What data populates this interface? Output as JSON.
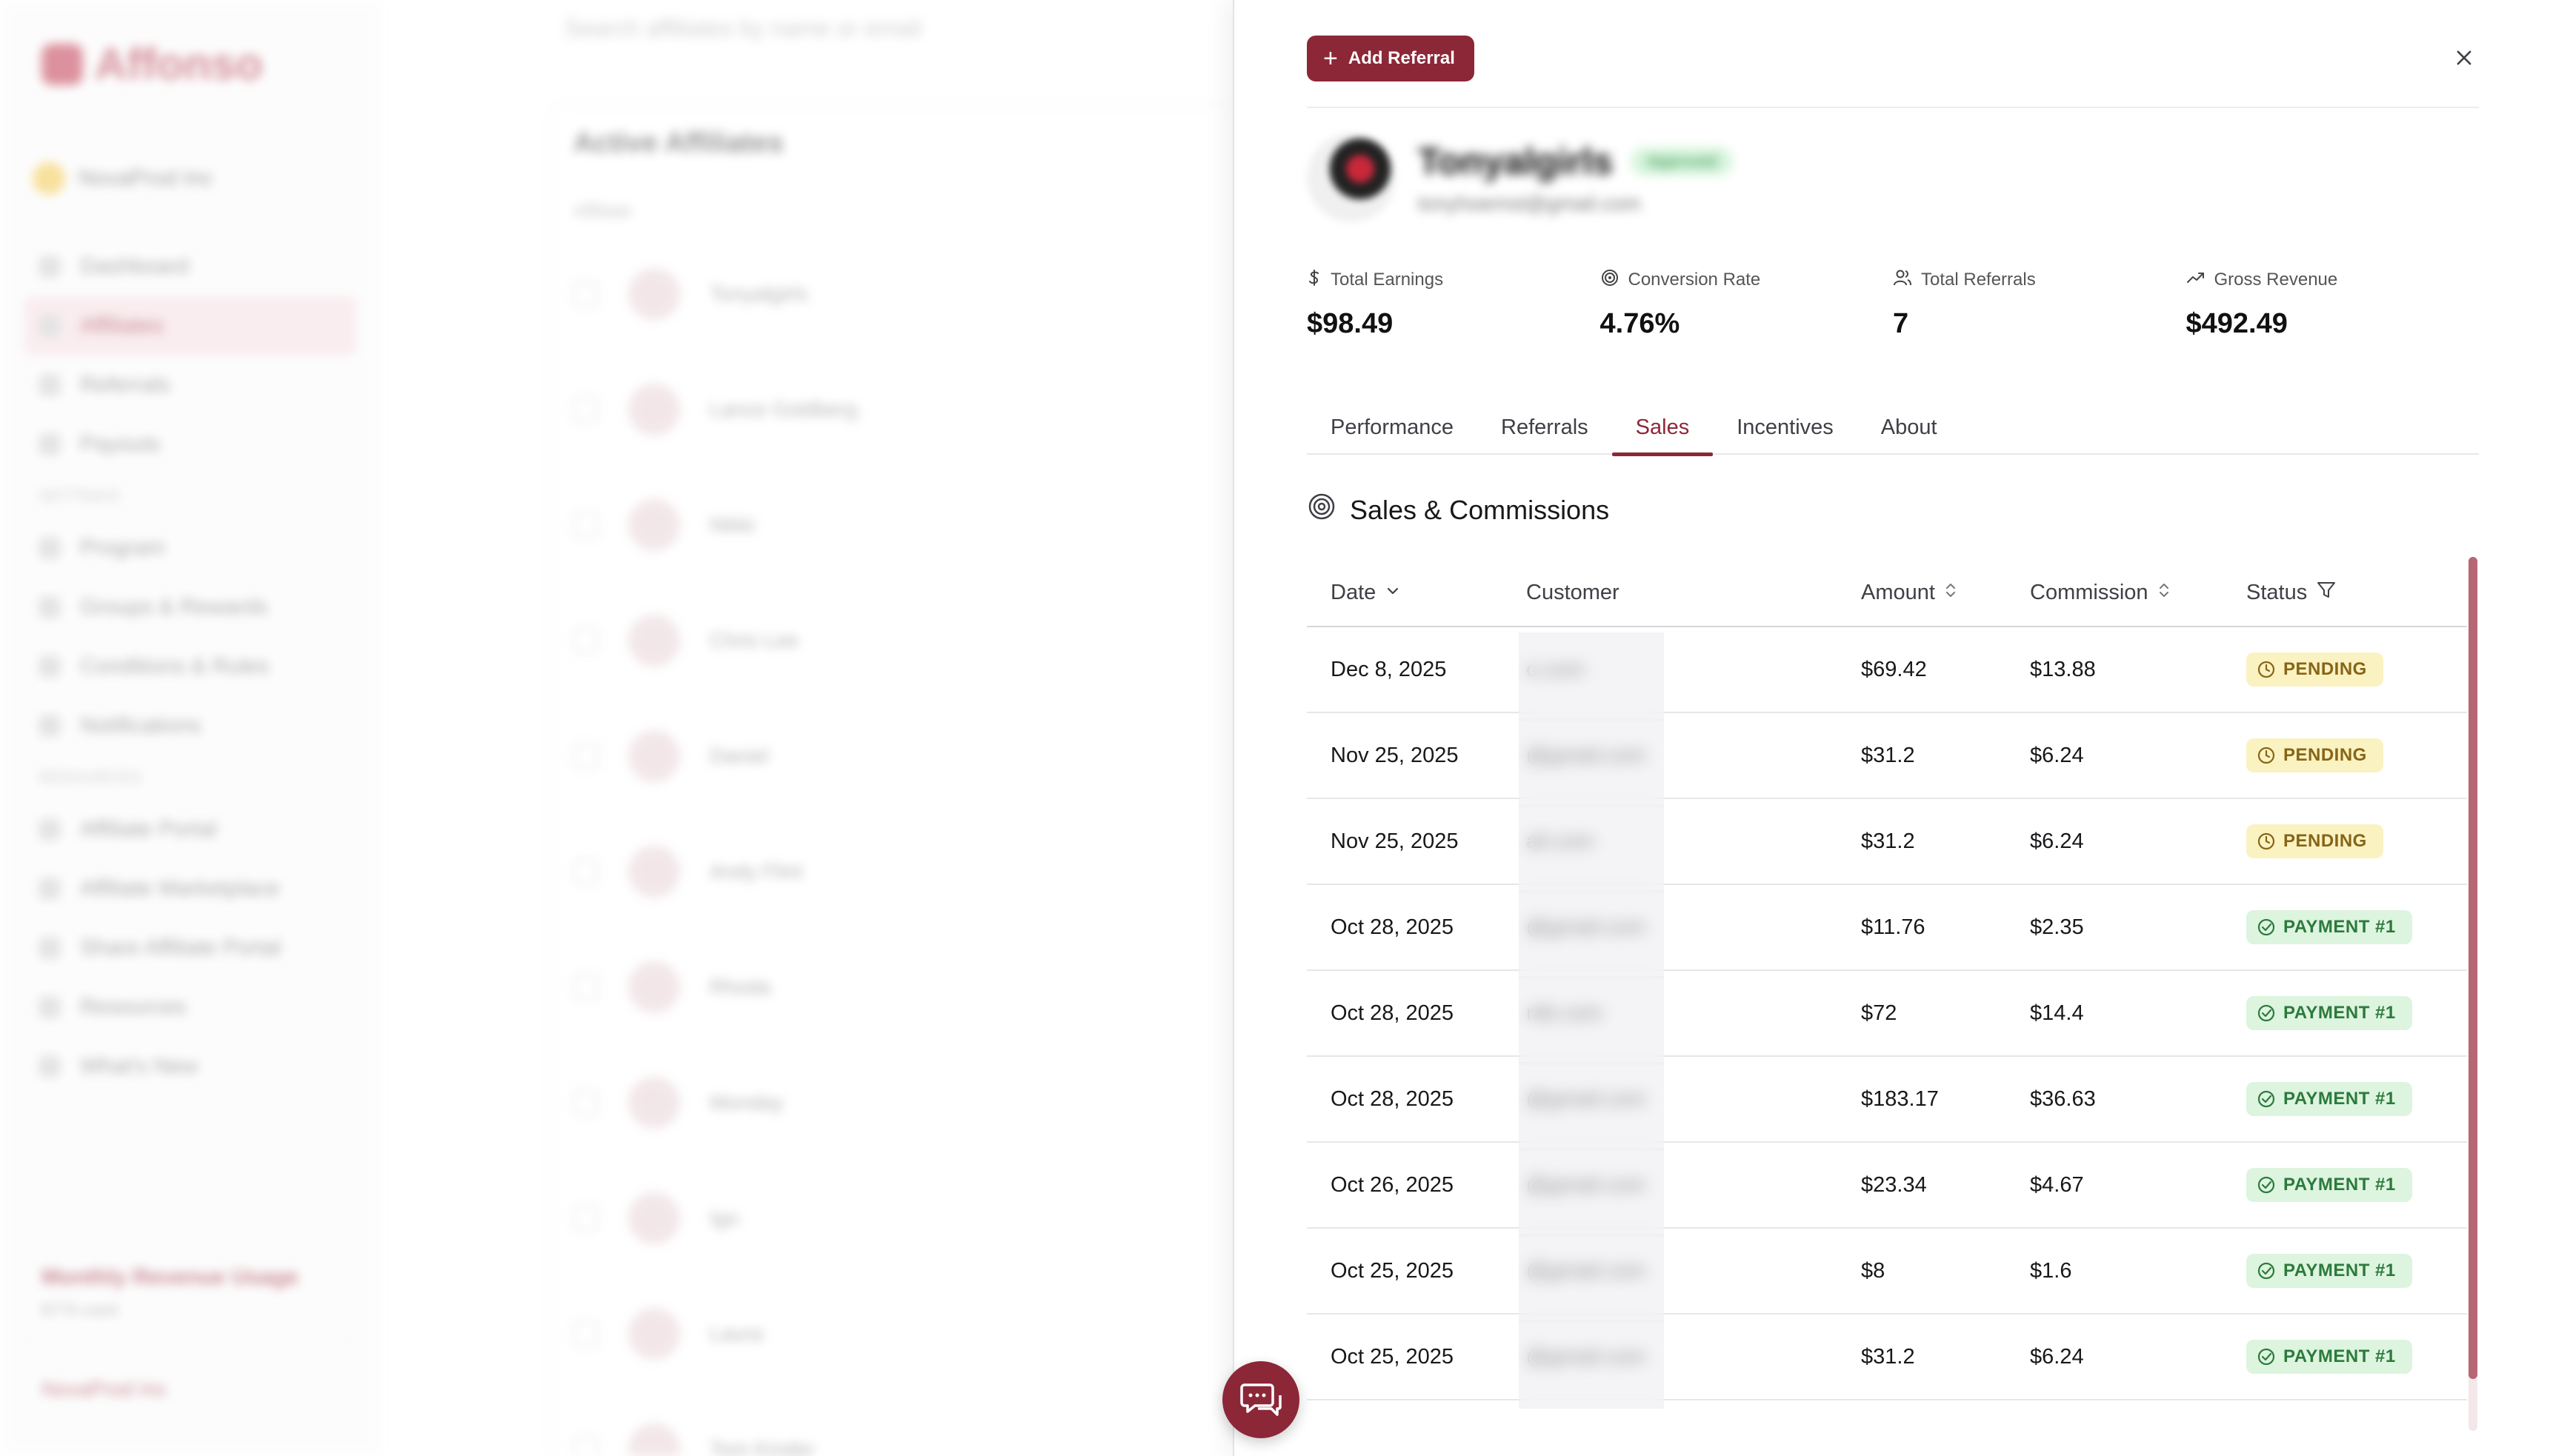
{
  "background": {
    "brand": "Affonso",
    "workspace": "NovaProd Inc",
    "search_placeholder": "Search affiliates by name or email",
    "nav": [
      "Dashboard",
      "Affiliates",
      "Referrals",
      "Payouts"
    ],
    "nav_section_settings": "SETTINGS",
    "nav_settings": [
      "Program",
      "Groups & Rewards",
      "Conditions & Rules",
      "Notifications"
    ],
    "nav_section_resources": "RESOURCES",
    "nav_resources": [
      "Affiliate Portal",
      "Affiliate Marketplace",
      "Share Affiliate Portal"
    ],
    "nav_bottom": [
      "Resources",
      "What's New"
    ],
    "card_title": "Active Affiliates",
    "table_header": "Affiliate",
    "usage_title": "Monthly Revenue Usage",
    "usage_sub": "$776 used",
    "user_name": "NovaProd Inc",
    "rows": [
      "Tonyalgirls",
      "Lance Goldberg",
      "Nikki",
      "Chris Lee",
      "Daniel",
      "Andy Flint",
      "Rhoda",
      "Monday",
      "Igo",
      "Laura",
      "Tom Kinder"
    ]
  },
  "drawer": {
    "add_referral_label": "Add Referral",
    "close_icon": "close-icon",
    "profile": {
      "name": "Tonyalgirls",
      "status": "Approved",
      "email": "tonyhoemst@gmail.com"
    },
    "stats": [
      {
        "icon": "dollar-icon",
        "label": "Total Earnings",
        "value": "$98.49"
      },
      {
        "icon": "target-icon",
        "label": "Conversion Rate",
        "value": "4.76%"
      },
      {
        "icon": "users-icon",
        "label": "Total Referrals",
        "value": "7"
      },
      {
        "icon": "trending-up-icon",
        "label": "Gross Revenue",
        "value": "$492.49"
      }
    ],
    "tabs": [
      "Performance",
      "Referrals",
      "Sales",
      "Incentives",
      "About"
    ],
    "active_tab": "Sales",
    "section_title": "Sales & Commissions",
    "table": {
      "columns": {
        "date": "Date",
        "customer": "Customer",
        "amount": "Amount",
        "commission": "Commission",
        "status": "Status"
      },
      "rows": [
        {
          "date": "Dec 8, 2025",
          "customer": "o.com",
          "amount": "$69.42",
          "commission": "$13.88",
          "status": "PENDING",
          "status_type": "pending"
        },
        {
          "date": "Nov 25, 2025",
          "customer": "@gmail.com",
          "amount": "$31.2",
          "commission": "$6.24",
          "status": "PENDING",
          "status_type": "pending"
        },
        {
          "date": "Nov 25, 2025",
          "customer": "ail.com",
          "amount": "$31.2",
          "commission": "$6.24",
          "status": "PENDING",
          "status_type": "pending"
        },
        {
          "date": "Oct 28, 2025",
          "customer": "@gmail.com",
          "amount": "$11.76",
          "commission": "$2.35",
          "status": "PAYMENT #1",
          "status_type": "paid"
        },
        {
          "date": "Oct 28, 2025",
          "customer": "ntb.com",
          "amount": "$72",
          "commission": "$14.4",
          "status": "PAYMENT #1",
          "status_type": "paid"
        },
        {
          "date": "Oct 28, 2025",
          "customer": "@gmail.com",
          "amount": "$183.17",
          "commission": "$36.63",
          "status": "PAYMENT #1",
          "status_type": "paid"
        },
        {
          "date": "Oct 26, 2025",
          "customer": "@gmail.com",
          "amount": "$23.34",
          "commission": "$4.67",
          "status": "PAYMENT #1",
          "status_type": "paid"
        },
        {
          "date": "Oct 25, 2025",
          "customer": "@gmail.com",
          "amount": "$8",
          "commission": "$1.6",
          "status": "PAYMENT #1",
          "status_type": "paid"
        },
        {
          "date": "Oct 25, 2025",
          "customer": "@gmail.com",
          "amount": "$31.2",
          "commission": "$6.24",
          "status": "PAYMENT #1",
          "status_type": "paid"
        }
      ]
    },
    "colors": {
      "accent": "#8c2738",
      "pending_bg": "#fbf2c2",
      "pending_fg": "#866516",
      "paid_bg": "#ddf4df",
      "paid_fg": "#2c7a3c"
    }
  },
  "chat": {
    "icon": "chat-icon"
  }
}
